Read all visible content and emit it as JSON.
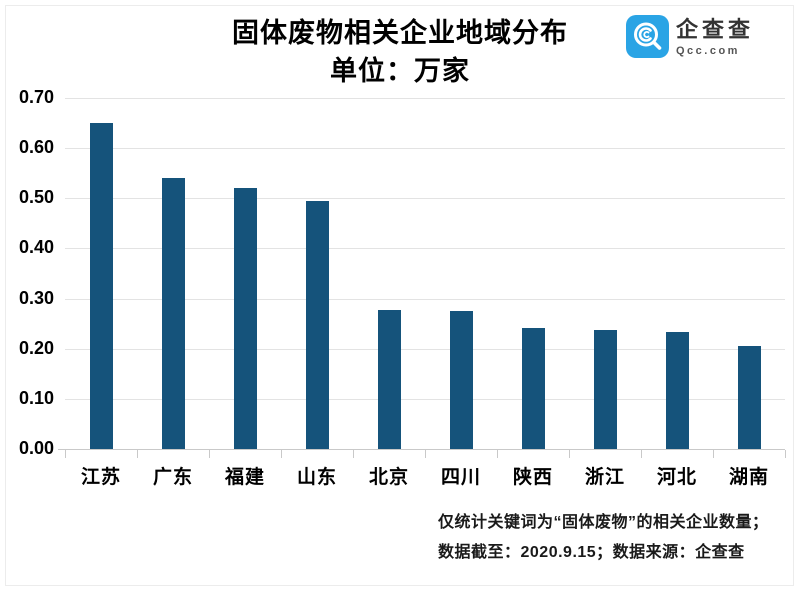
{
  "title": {
    "line1": "固体废物相关企业地域分布",
    "line2": "单位：万家"
  },
  "logo": {
    "name": "企查查",
    "domain": "Qcc.com",
    "brand_color": "#2AA4E5"
  },
  "chart_data": {
    "type": "bar",
    "title": "固体废物相关企业地域分布",
    "subtitle": "单位：万家",
    "unit": "万家",
    "categories": [
      "江苏",
      "广东",
      "福建",
      "山东",
      "北京",
      "四川",
      "陕西",
      "浙江",
      "河北",
      "湖南"
    ],
    "values": [
      0.65,
      0.54,
      0.52,
      0.495,
      0.277,
      0.275,
      0.241,
      0.237,
      0.233,
      0.205
    ],
    "xlabel": "",
    "ylabel": "",
    "ylim": [
      0,
      0.7
    ],
    "ytick_labels": [
      "0.00",
      "0.10",
      "0.20",
      "0.30",
      "0.40",
      "0.50",
      "0.60",
      "0.70"
    ],
    "grid": true,
    "legend": false,
    "bar_color": "#15537B"
  },
  "footnotes": {
    "line1": "仅统计关键词为“固体废物”的相关企业数量；",
    "line2": "数据截至：2020.9.15；数据来源：企查查"
  }
}
